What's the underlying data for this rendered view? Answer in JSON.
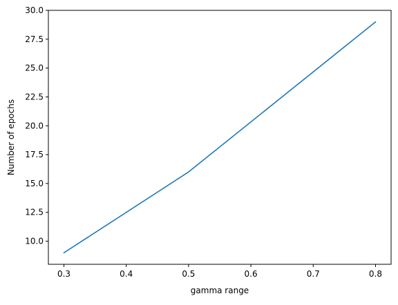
{
  "chart_data": {
    "type": "line",
    "title": "",
    "xlabel": "gamma range",
    "ylabel": "Number of epochs",
    "xlim": [
      0.275,
      0.825
    ],
    "ylim": [
      8.0,
      30.0
    ],
    "xticks": [
      "0.3",
      "0.4",
      "0.5",
      "0.6",
      "0.7",
      "0.8"
    ],
    "yticks": [
      "10.0",
      "12.5",
      "15.0",
      "17.5",
      "20.0",
      "22.5",
      "25.0",
      "27.5",
      "30.0"
    ],
    "grid": false,
    "legend": "none",
    "series": [
      {
        "x": [
          0.3,
          0.5,
          0.8
        ],
        "y": [
          9,
          16,
          29
        ],
        "color": "#1f77b4"
      }
    ]
  }
}
